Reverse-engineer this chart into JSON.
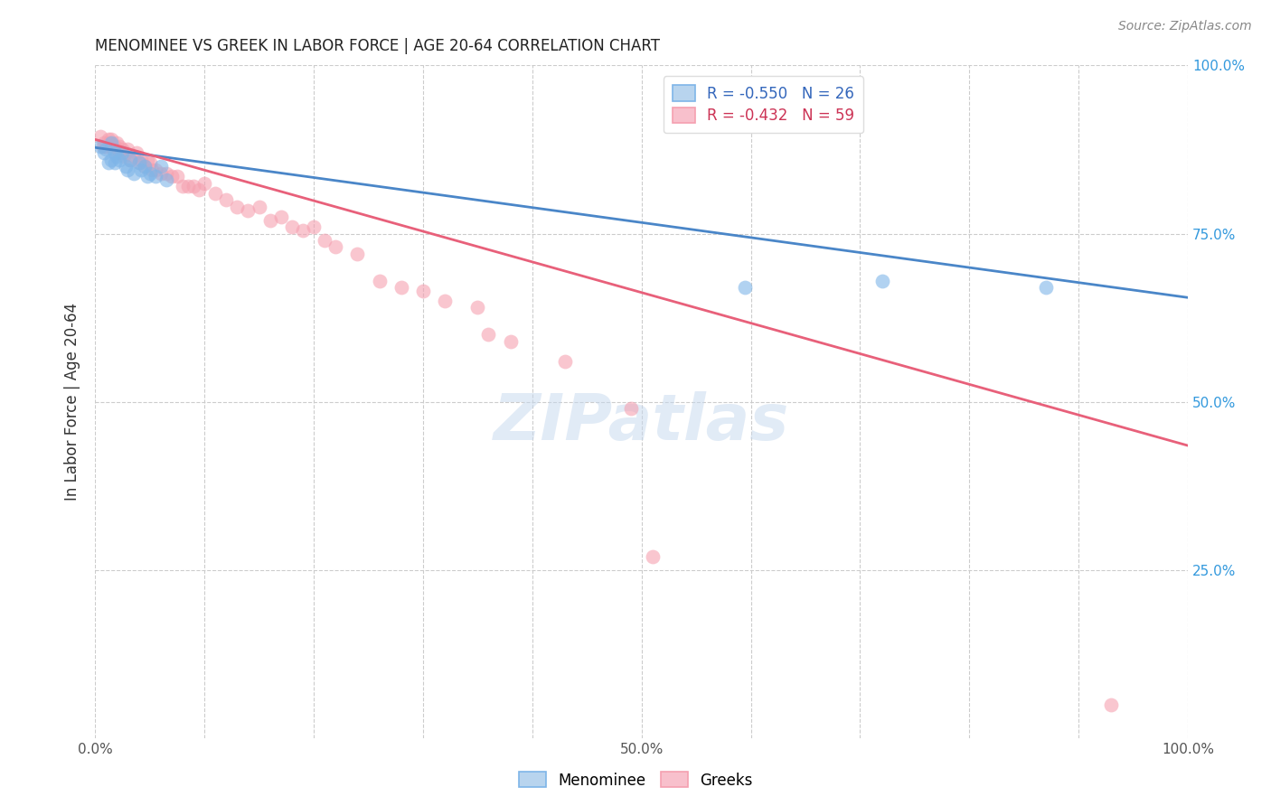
{
  "title": "MENOMINEE VS GREEK IN LABOR FORCE | AGE 20-64 CORRELATION CHART",
  "source": "Source: ZipAtlas.com",
  "ylabel": "In Labor Force | Age 20-64",
  "xlim": [
    0,
    1.0
  ],
  "ylim": [
    0,
    1.0
  ],
  "menominee_color": "#7EB5E8",
  "greeks_color": "#F5A0B0",
  "menominee_line_color": "#4A86C8",
  "greeks_line_color": "#E8607A",
  "watermark_color": "#C5D8EE",
  "watermark_alpha": 0.5,
  "menominee_x": [
    0.005,
    0.008,
    0.01,
    0.012,
    0.015,
    0.015,
    0.018,
    0.018,
    0.02,
    0.022,
    0.025,
    0.028,
    0.03,
    0.032,
    0.035,
    0.04,
    0.042,
    0.045,
    0.048,
    0.05,
    0.055,
    0.06,
    0.065,
    0.595,
    0.72,
    0.87
  ],
  "menominee_y": [
    0.88,
    0.87,
    0.875,
    0.855,
    0.885,
    0.86,
    0.87,
    0.855,
    0.865,
    0.86,
    0.87,
    0.85,
    0.845,
    0.86,
    0.84,
    0.855,
    0.845,
    0.85,
    0.835,
    0.84,
    0.835,
    0.85,
    0.83,
    0.67,
    0.68,
    0.67
  ],
  "greeks_x": [
    0.005,
    0.007,
    0.008,
    0.01,
    0.012,
    0.013,
    0.015,
    0.016,
    0.018,
    0.02,
    0.022,
    0.022,
    0.025,
    0.026,
    0.028,
    0.03,
    0.032,
    0.035,
    0.038,
    0.04,
    0.042,
    0.045,
    0.048,
    0.05,
    0.052,
    0.055,
    0.06,
    0.065,
    0.07,
    0.075,
    0.08,
    0.085,
    0.09,
    0.095,
    0.1,
    0.11,
    0.12,
    0.13,
    0.14,
    0.15,
    0.16,
    0.17,
    0.18,
    0.19,
    0.2,
    0.21,
    0.22,
    0.24,
    0.26,
    0.28,
    0.3,
    0.32,
    0.35,
    0.36,
    0.38,
    0.43,
    0.49,
    0.51,
    0.93
  ],
  "greeks_y": [
    0.895,
    0.88,
    0.885,
    0.88,
    0.89,
    0.885,
    0.89,
    0.875,
    0.88,
    0.885,
    0.88,
    0.87,
    0.875,
    0.865,
    0.87,
    0.875,
    0.86,
    0.865,
    0.87,
    0.855,
    0.86,
    0.85,
    0.86,
    0.855,
    0.845,
    0.845,
    0.84,
    0.84,
    0.835,
    0.835,
    0.82,
    0.82,
    0.82,
    0.815,
    0.825,
    0.81,
    0.8,
    0.79,
    0.785,
    0.79,
    0.77,
    0.775,
    0.76,
    0.755,
    0.76,
    0.74,
    0.73,
    0.72,
    0.68,
    0.67,
    0.665,
    0.65,
    0.64,
    0.6,
    0.59,
    0.56,
    0.49,
    0.27,
    0.05
  ],
  "menominee_R": -0.55,
  "menominee_N": 26,
  "greeks_R": -0.432,
  "greeks_N": 59,
  "blue_line_x0": 0.0,
  "blue_line_y0": 0.878,
  "blue_line_x1": 1.0,
  "blue_line_y1": 0.655,
  "pink_line_x0": 0.0,
  "pink_line_y0": 0.89,
  "pink_line_x1": 1.0,
  "pink_line_y1": 0.435,
  "background_color": "#ffffff",
  "grid_color": "#cccccc"
}
